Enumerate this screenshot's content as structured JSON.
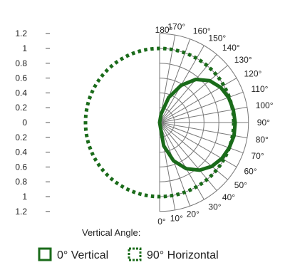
{
  "chart_data": {
    "type": "polar-candela",
    "y_tick_labels": [
      "1.2",
      "1",
      "0.8",
      "0.6",
      "0.4",
      "0.2",
      "0",
      "0.2",
      "0.4",
      "0.6",
      "0.8",
      "1",
      "1.2"
    ],
    "radial_max": 1.2,
    "radial_rings": [
      0.2,
      0.4,
      0.6,
      0.8,
      1.0,
      1.2
    ],
    "angle_ticks": [
      0,
      10,
      20,
      30,
      40,
      50,
      60,
      70,
      80,
      90,
      100,
      110,
      120,
      130,
      140,
      150,
      160,
      170,
      180
    ],
    "angle_tick_labels": [
      "0°",
      "10°",
      "20°",
      "30°",
      "40°",
      "50°",
      "60°",
      "70°",
      "80°",
      "90°",
      "100°",
      "110°",
      "120°",
      "130°",
      "140°",
      "150°",
      "160°",
      "170°",
      "180°"
    ],
    "angle_axis_title": "Vertical Angle:",
    "series": [
      {
        "name": "0° Vertical",
        "color": "#1a6b1a",
        "style": "solid",
        "points": [
          [
            0,
            0.0
          ],
          [
            10,
            0.32
          ],
          [
            20,
            0.55
          ],
          [
            30,
            0.72
          ],
          [
            40,
            0.84
          ],
          [
            50,
            0.92
          ],
          [
            60,
            0.97
          ],
          [
            70,
            1.0
          ],
          [
            80,
            1.02
          ],
          [
            90,
            1.02
          ],
          [
            100,
            1.01
          ],
          [
            110,
            0.99
          ],
          [
            120,
            0.95
          ],
          [
            130,
            0.88
          ],
          [
            140,
            0.76
          ],
          [
            150,
            0.58
          ],
          [
            160,
            0.36
          ],
          [
            170,
            0.12
          ],
          [
            180,
            0.0
          ]
        ]
      },
      {
        "name": "90° Horizontal",
        "color": "#1a6b1a",
        "style": "dotted",
        "points": [
          [
            0,
            1.0
          ],
          [
            45,
            1.0
          ],
          [
            90,
            1.0
          ],
          [
            135,
            1.0
          ],
          [
            180,
            1.0
          ]
        ],
        "mirror": true
      }
    ]
  },
  "legend": {
    "items": [
      {
        "label": "0° Vertical",
        "icon": "square-solid"
      },
      {
        "label": "90° Horizontal",
        "icon": "square-dotted"
      }
    ]
  }
}
